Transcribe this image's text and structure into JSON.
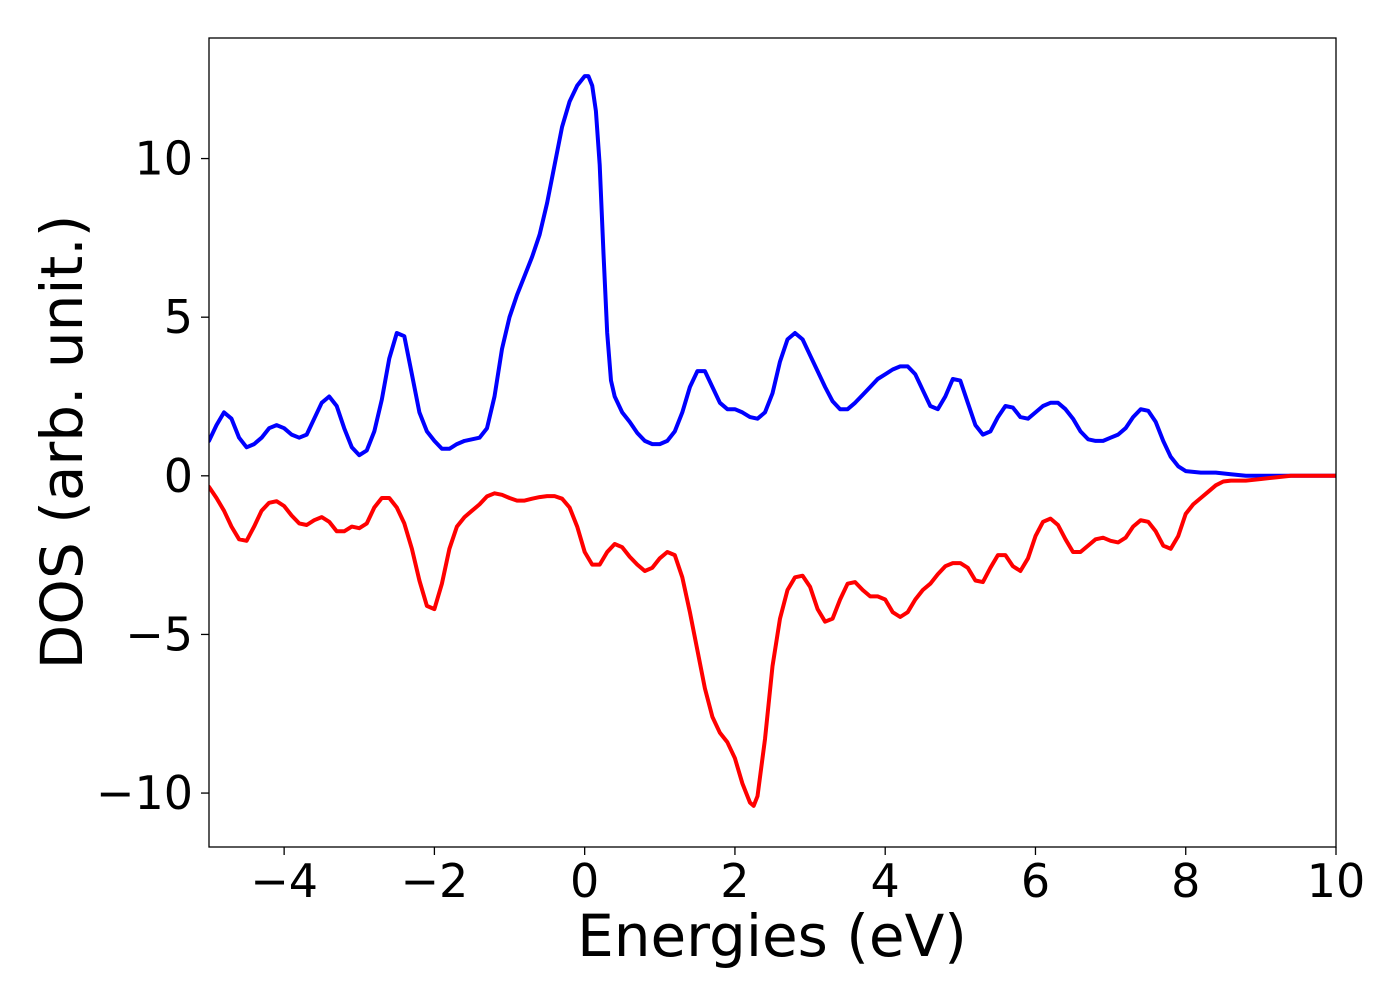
{
  "chart_data": {
    "type": "line",
    "title": "",
    "xlabel": "Energies (eV)",
    "ylabel": "DOS (arb. unit.)",
    "xlim": [
      -5,
      10
    ],
    "ylim": [
      -11.7,
      13.8
    ],
    "xticks": [
      -4,
      -2,
      0,
      2,
      4,
      6,
      8,
      10
    ],
    "xtick_labels": [
      "−4",
      "−2",
      "0",
      "2",
      "4",
      "6",
      "8",
      "10"
    ],
    "yticks": [
      10,
      5,
      0,
      -5,
      -10
    ],
    "ytick_labels": [
      "10",
      "5",
      "0",
      "−5",
      "−10"
    ],
    "grid": false,
    "legend": "none",
    "series": [
      {
        "color": "#0000ff",
        "points": [
          [
            -5.0,
            1.1
          ],
          [
            -4.9,
            1.6
          ],
          [
            -4.8,
            2.0
          ],
          [
            -4.7,
            1.8
          ],
          [
            -4.6,
            1.2
          ],
          [
            -4.5,
            0.9
          ],
          [
            -4.4,
            1.0
          ],
          [
            -4.3,
            1.2
          ],
          [
            -4.2,
            1.5
          ],
          [
            -4.1,
            1.6
          ],
          [
            -4.0,
            1.5
          ],
          [
            -3.9,
            1.3
          ],
          [
            -3.8,
            1.2
          ],
          [
            -3.7,
            1.3
          ],
          [
            -3.6,
            1.8
          ],
          [
            -3.5,
            2.3
          ],
          [
            -3.4,
            2.5
          ],
          [
            -3.3,
            2.2
          ],
          [
            -3.2,
            1.5
          ],
          [
            -3.1,
            0.9
          ],
          [
            -3.0,
            0.65
          ],
          [
            -2.9,
            0.8
          ],
          [
            -2.8,
            1.4
          ],
          [
            -2.7,
            2.4
          ],
          [
            -2.6,
            3.7
          ],
          [
            -2.5,
            4.5
          ],
          [
            -2.4,
            4.4
          ],
          [
            -2.3,
            3.2
          ],
          [
            -2.2,
            2.0
          ],
          [
            -2.1,
            1.4
          ],
          [
            -2.0,
            1.1
          ],
          [
            -1.9,
            0.85
          ],
          [
            -1.8,
            0.85
          ],
          [
            -1.7,
            1.0
          ],
          [
            -1.6,
            1.1
          ],
          [
            -1.5,
            1.15
          ],
          [
            -1.4,
            1.2
          ],
          [
            -1.3,
            1.5
          ],
          [
            -1.2,
            2.5
          ],
          [
            -1.1,
            4.0
          ],
          [
            -1.0,
            5.0
          ],
          [
            -0.9,
            5.7
          ],
          [
            -0.8,
            6.3
          ],
          [
            -0.7,
            6.9
          ],
          [
            -0.6,
            7.6
          ],
          [
            -0.5,
            8.6
          ],
          [
            -0.4,
            9.8
          ],
          [
            -0.3,
            11.0
          ],
          [
            -0.2,
            11.8
          ],
          [
            -0.1,
            12.3
          ],
          [
            0.0,
            12.6
          ],
          [
            0.05,
            12.6
          ],
          [
            0.1,
            12.3
          ],
          [
            0.15,
            11.5
          ],
          [
            0.2,
            9.8
          ],
          [
            0.25,
            7.0
          ],
          [
            0.3,
            4.5
          ],
          [
            0.35,
            3.0
          ],
          [
            0.4,
            2.5
          ],
          [
            0.5,
            2.0
          ],
          [
            0.6,
            1.7
          ],
          [
            0.7,
            1.35
          ],
          [
            0.8,
            1.1
          ],
          [
            0.9,
            1.0
          ],
          [
            1.0,
            1.0
          ],
          [
            1.1,
            1.1
          ],
          [
            1.2,
            1.4
          ],
          [
            1.3,
            2.0
          ],
          [
            1.4,
            2.8
          ],
          [
            1.5,
            3.3
          ],
          [
            1.6,
            3.3
          ],
          [
            1.7,
            2.8
          ],
          [
            1.8,
            2.3
          ],
          [
            1.9,
            2.1
          ],
          [
            2.0,
            2.1
          ],
          [
            2.1,
            2.0
          ],
          [
            2.2,
            1.85
          ],
          [
            2.3,
            1.8
          ],
          [
            2.4,
            2.0
          ],
          [
            2.5,
            2.6
          ],
          [
            2.6,
            3.6
          ],
          [
            2.7,
            4.3
          ],
          [
            2.8,
            4.5
          ],
          [
            2.9,
            4.3
          ],
          [
            3.0,
            3.8
          ],
          [
            3.1,
            3.3
          ],
          [
            3.2,
            2.8
          ],
          [
            3.3,
            2.35
          ],
          [
            3.4,
            2.1
          ],
          [
            3.5,
            2.1
          ],
          [
            3.6,
            2.3
          ],
          [
            3.7,
            2.55
          ],
          [
            3.8,
            2.8
          ],
          [
            3.9,
            3.05
          ],
          [
            4.0,
            3.2
          ],
          [
            4.1,
            3.35
          ],
          [
            4.2,
            3.45
          ],
          [
            4.3,
            3.45
          ],
          [
            4.4,
            3.2
          ],
          [
            4.5,
            2.7
          ],
          [
            4.6,
            2.2
          ],
          [
            4.7,
            2.1
          ],
          [
            4.8,
            2.5
          ],
          [
            4.9,
            3.05
          ],
          [
            5.0,
            3.0
          ],
          [
            5.1,
            2.3
          ],
          [
            5.2,
            1.6
          ],
          [
            5.3,
            1.3
          ],
          [
            5.4,
            1.4
          ],
          [
            5.5,
            1.85
          ],
          [
            5.6,
            2.2
          ],
          [
            5.7,
            2.15
          ],
          [
            5.8,
            1.85
          ],
          [
            5.9,
            1.8
          ],
          [
            6.0,
            2.0
          ],
          [
            6.1,
            2.2
          ],
          [
            6.2,
            2.3
          ],
          [
            6.3,
            2.3
          ],
          [
            6.4,
            2.1
          ],
          [
            6.5,
            1.8
          ],
          [
            6.6,
            1.4
          ],
          [
            6.7,
            1.15
          ],
          [
            6.8,
            1.1
          ],
          [
            6.9,
            1.1
          ],
          [
            7.0,
            1.2
          ],
          [
            7.1,
            1.3
          ],
          [
            7.2,
            1.5
          ],
          [
            7.3,
            1.85
          ],
          [
            7.4,
            2.1
          ],
          [
            7.5,
            2.05
          ],
          [
            7.6,
            1.7
          ],
          [
            7.7,
            1.1
          ],
          [
            7.8,
            0.6
          ],
          [
            7.9,
            0.3
          ],
          [
            8.0,
            0.15
          ],
          [
            8.2,
            0.1
          ],
          [
            8.4,
            0.1
          ],
          [
            8.6,
            0.05
          ],
          [
            8.8,
            0.0
          ],
          [
            10.0,
            0.0
          ]
        ]
      },
      {
        "color": "#ff0000",
        "points": [
          [
            -5.0,
            -0.35
          ],
          [
            -4.9,
            -0.7
          ],
          [
            -4.8,
            -1.1
          ],
          [
            -4.7,
            -1.6
          ],
          [
            -4.6,
            -2.0
          ],
          [
            -4.5,
            -2.05
          ],
          [
            -4.4,
            -1.6
          ],
          [
            -4.3,
            -1.1
          ],
          [
            -4.2,
            -0.85
          ],
          [
            -4.1,
            -0.8
          ],
          [
            -4.0,
            -0.95
          ],
          [
            -3.9,
            -1.25
          ],
          [
            -3.8,
            -1.5
          ],
          [
            -3.7,
            -1.55
          ],
          [
            -3.6,
            -1.4
          ],
          [
            -3.5,
            -1.3
          ],
          [
            -3.4,
            -1.45
          ],
          [
            -3.3,
            -1.75
          ],
          [
            -3.2,
            -1.75
          ],
          [
            -3.1,
            -1.6
          ],
          [
            -3.0,
            -1.65
          ],
          [
            -2.9,
            -1.5
          ],
          [
            -2.8,
            -1.0
          ],
          [
            -2.7,
            -0.7
          ],
          [
            -2.6,
            -0.7
          ],
          [
            -2.5,
            -1.0
          ],
          [
            -2.4,
            -1.5
          ],
          [
            -2.3,
            -2.3
          ],
          [
            -2.2,
            -3.3
          ],
          [
            -2.1,
            -4.1
          ],
          [
            -2.0,
            -4.2
          ],
          [
            -1.9,
            -3.4
          ],
          [
            -1.8,
            -2.3
          ],
          [
            -1.7,
            -1.6
          ],
          [
            -1.6,
            -1.3
          ],
          [
            -1.5,
            -1.1
          ],
          [
            -1.4,
            -0.9
          ],
          [
            -1.3,
            -0.65
          ],
          [
            -1.2,
            -0.55
          ],
          [
            -1.1,
            -0.6
          ],
          [
            -1.0,
            -0.7
          ],
          [
            -0.9,
            -0.78
          ],
          [
            -0.8,
            -0.78
          ],
          [
            -0.7,
            -0.72
          ],
          [
            -0.6,
            -0.67
          ],
          [
            -0.5,
            -0.64
          ],
          [
            -0.4,
            -0.64
          ],
          [
            -0.3,
            -0.72
          ],
          [
            -0.2,
            -1.0
          ],
          [
            -0.1,
            -1.6
          ],
          [
            0.0,
            -2.4
          ],
          [
            0.1,
            -2.8
          ],
          [
            0.2,
            -2.8
          ],
          [
            0.3,
            -2.4
          ],
          [
            0.4,
            -2.15
          ],
          [
            0.5,
            -2.25
          ],
          [
            0.6,
            -2.55
          ],
          [
            0.7,
            -2.8
          ],
          [
            0.8,
            -3.0
          ],
          [
            0.9,
            -2.9
          ],
          [
            1.0,
            -2.6
          ],
          [
            1.1,
            -2.4
          ],
          [
            1.2,
            -2.5
          ],
          [
            1.3,
            -3.2
          ],
          [
            1.4,
            -4.3
          ],
          [
            1.5,
            -5.5
          ],
          [
            1.6,
            -6.7
          ],
          [
            1.7,
            -7.6
          ],
          [
            1.8,
            -8.1
          ],
          [
            1.9,
            -8.4
          ],
          [
            2.0,
            -8.9
          ],
          [
            2.1,
            -9.7
          ],
          [
            2.2,
            -10.3
          ],
          [
            2.25,
            -10.4
          ],
          [
            2.3,
            -10.1
          ],
          [
            2.4,
            -8.3
          ],
          [
            2.5,
            -6.0
          ],
          [
            2.6,
            -4.5
          ],
          [
            2.7,
            -3.6
          ],
          [
            2.8,
            -3.2
          ],
          [
            2.9,
            -3.15
          ],
          [
            3.0,
            -3.5
          ],
          [
            3.1,
            -4.2
          ],
          [
            3.2,
            -4.6
          ],
          [
            3.3,
            -4.5
          ],
          [
            3.4,
            -3.9
          ],
          [
            3.5,
            -3.4
          ],
          [
            3.6,
            -3.35
          ],
          [
            3.7,
            -3.6
          ],
          [
            3.8,
            -3.8
          ],
          [
            3.9,
            -3.8
          ],
          [
            4.0,
            -3.9
          ],
          [
            4.1,
            -4.3
          ],
          [
            4.2,
            -4.45
          ],
          [
            4.3,
            -4.3
          ],
          [
            4.4,
            -3.9
          ],
          [
            4.5,
            -3.6
          ],
          [
            4.6,
            -3.4
          ],
          [
            4.7,
            -3.1
          ],
          [
            4.8,
            -2.85
          ],
          [
            4.9,
            -2.75
          ],
          [
            5.0,
            -2.75
          ],
          [
            5.1,
            -2.9
          ],
          [
            5.2,
            -3.3
          ],
          [
            5.3,
            -3.35
          ],
          [
            5.4,
            -2.9
          ],
          [
            5.5,
            -2.5
          ],
          [
            5.6,
            -2.5
          ],
          [
            5.7,
            -2.85
          ],
          [
            5.8,
            -3.0
          ],
          [
            5.9,
            -2.6
          ],
          [
            6.0,
            -1.9
          ],
          [
            6.1,
            -1.45
          ],
          [
            6.2,
            -1.35
          ],
          [
            6.3,
            -1.55
          ],
          [
            6.4,
            -2.0
          ],
          [
            6.5,
            -2.4
          ],
          [
            6.6,
            -2.4
          ],
          [
            6.7,
            -2.2
          ],
          [
            6.8,
            -2.0
          ],
          [
            6.9,
            -1.95
          ],
          [
            7.0,
            -2.05
          ],
          [
            7.1,
            -2.1
          ],
          [
            7.2,
            -1.95
          ],
          [
            7.3,
            -1.6
          ],
          [
            7.4,
            -1.4
          ],
          [
            7.5,
            -1.45
          ],
          [
            7.6,
            -1.75
          ],
          [
            7.7,
            -2.2
          ],
          [
            7.8,
            -2.3
          ],
          [
            7.9,
            -1.9
          ],
          [
            8.0,
            -1.2
          ],
          [
            8.1,
            -0.9
          ],
          [
            8.2,
            -0.7
          ],
          [
            8.3,
            -0.5
          ],
          [
            8.4,
            -0.3
          ],
          [
            8.5,
            -0.18
          ],
          [
            8.6,
            -0.15
          ],
          [
            8.8,
            -0.15
          ],
          [
            9.0,
            -0.1
          ],
          [
            9.2,
            -0.05
          ],
          [
            9.4,
            0.0
          ],
          [
            10.0,
            0.0
          ]
        ]
      }
    ]
  }
}
